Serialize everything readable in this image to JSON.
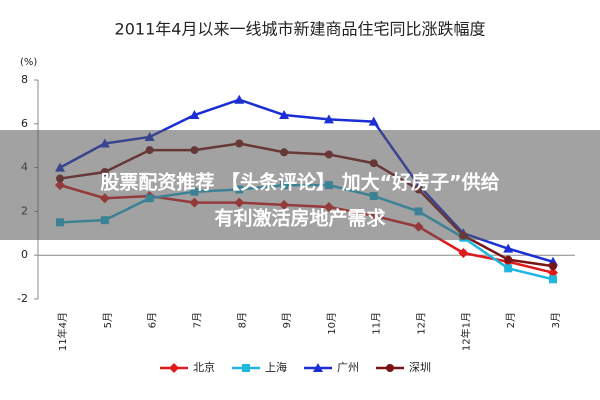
{
  "chart_data": {
    "type": "line",
    "title": "2011年4月以来一线城市新建商品住宅同比涨跌幅度",
    "y_unit": "(%)",
    "categories": [
      "11年4月",
      "5月",
      "6月",
      "7月",
      "8月",
      "9月",
      "10月",
      "11月",
      "12月",
      "12年1月",
      "2月",
      "3月"
    ],
    "series": [
      {
        "name": "北京",
        "color": "#e0191b",
        "marker": "diamond",
        "values": [
          3.2,
          2.6,
          2.7,
          2.4,
          2.4,
          2.3,
          2.2,
          1.8,
          1.3,
          0.1,
          -0.3,
          -0.8
        ]
      },
      {
        "name": "上海",
        "color": "#1fb6e0",
        "marker": "square",
        "values": [
          1.5,
          1.6,
          2.6,
          2.9,
          3.0,
          3.2,
          3.2,
          2.7,
          2.0,
          0.8,
          -0.6,
          -1.1
        ]
      },
      {
        "name": "广州",
        "color": "#1c2fd6",
        "marker": "triangle",
        "values": [
          4.0,
          5.1,
          5.4,
          6.4,
          7.1,
          6.4,
          6.2,
          6.1,
          3.2,
          1.0,
          0.3,
          -0.3
        ]
      },
      {
        "name": "深圳",
        "color": "#7a1416",
        "marker": "circle",
        "values": [
          3.5,
          3.8,
          4.8,
          4.8,
          5.1,
          4.7,
          4.6,
          4.2,
          3.0,
          0.9,
          -0.2,
          -0.5
        ]
      }
    ],
    "ylim": [
      -2,
      8
    ],
    "yticks": [
      -2,
      0,
      2,
      4,
      6,
      8
    ]
  },
  "overlay": {
    "line1": "股票配资推荐 【头条评论】 加大“好房子”供给",
    "line2": "有利激活房地产需求"
  }
}
